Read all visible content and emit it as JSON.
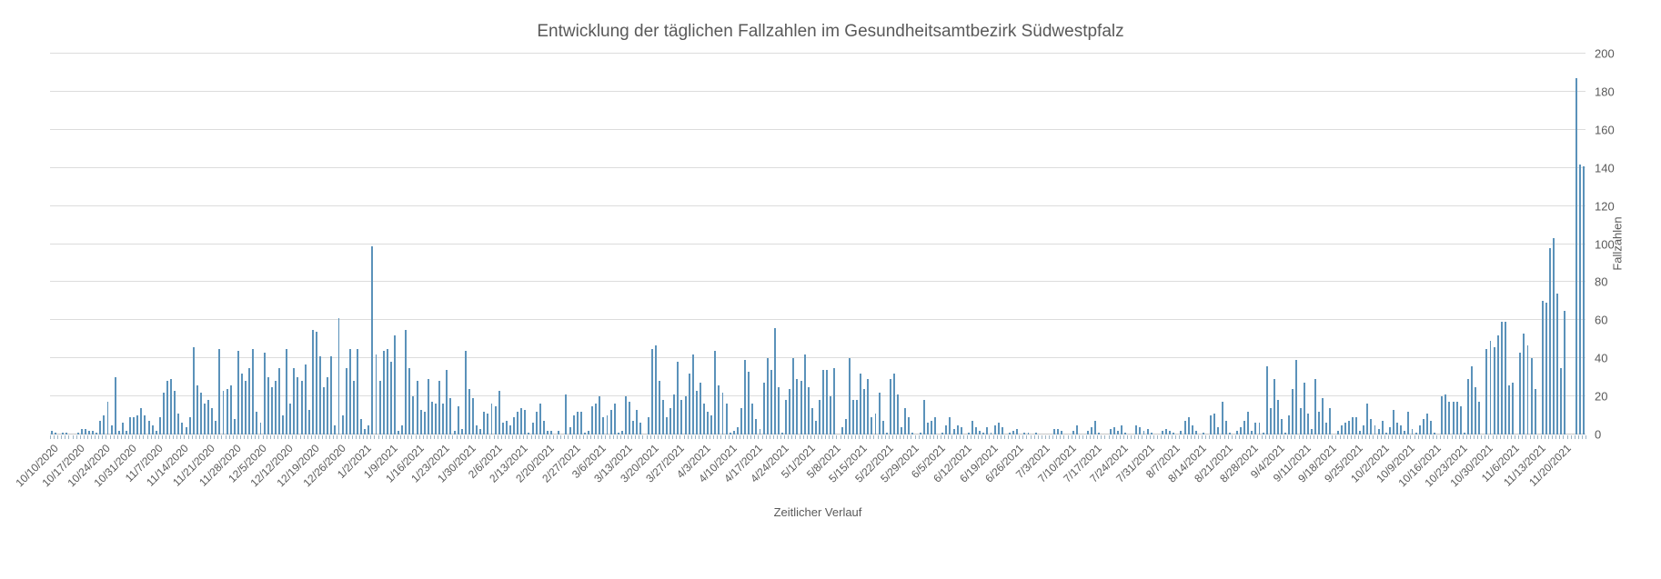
{
  "title": "Entwicklung der täglichen Fallzahlen im Gesundheitsamtbezirk Südwestpfalz",
  "x_axis": {
    "title": "Zeitlicher Verlauf"
  },
  "y_axis": {
    "title": "Fallzahlen"
  },
  "colors": {
    "bar": "#5b92ba",
    "gridline": "#dcdcdc",
    "axis_line": "#c6c6c6",
    "text": "#595959",
    "day_tick": "#9db4c4"
  },
  "chart_data": {
    "type": "bar",
    "title": "Entwicklung der täglichen Fallzahlen im Gesundheitsamtbezirk Südwestpfalz",
    "xlabel": "Zeitlicher Verlauf",
    "ylabel": "Fallzahlen",
    "ylim": [
      0,
      200
    ],
    "ystep": 20,
    "grid": true,
    "legend": "none",
    "y_axis_side": "right",
    "x_start_date": "10/10/2020",
    "x_end_date": "11/25/2021",
    "frequency": "daily",
    "x_tick_interval_days": 7,
    "x_tick_labels": [
      "10/10/2020",
      "10/17/2020",
      "10/24/2020",
      "10/31/2020",
      "11/7/2020",
      "11/14/2020",
      "11/21/2020",
      "11/28/2020",
      "12/5/2020",
      "12/12/2020",
      "12/19/2020",
      "12/26/2020",
      "1/2/2021",
      "1/9/2021",
      "1/16/2021",
      "1/23/2021",
      "1/30/2021",
      "2/6/2021",
      "2/13/2021",
      "2/20/2021",
      "2/27/2021",
      "3/6/2021",
      "3/13/2021",
      "3/20/2021",
      "3/27/2021",
      "4/3/2021",
      "4/10/2021",
      "4/17/2021",
      "4/24/2021",
      "5/1/2021",
      "5/8/2021",
      "5/15/2021",
      "5/22/2021",
      "5/29/2021",
      "6/5/2021",
      "6/12/2021",
      "6/19/2021",
      "6/26/2021",
      "7/3/2021",
      "7/10/2021",
      "7/17/2021",
      "7/24/2021",
      "7/31/2021",
      "8/7/2021",
      "8/14/2021",
      "8/21/2021",
      "8/28/2021",
      "9/4/2021",
      "9/11/2021",
      "9/18/2021",
      "9/25/2021",
      "10/2/2021",
      "10/9/2021",
      "10/16/2021",
      "10/23/2021",
      "10/30/2021",
      "11/6/2021",
      "11/13/2021",
      "11/20/2021"
    ],
    "y_tick_labels": [
      "0",
      "20",
      "40",
      "60",
      "80",
      "100",
      "120",
      "140",
      "160",
      "180",
      "200"
    ],
    "values": [
      2,
      1,
      0,
      1,
      1,
      0,
      0,
      1,
      3,
      3,
      2,
      2,
      1,
      7,
      10,
      17,
      5,
      30,
      2,
      6,
      2,
      9,
      9,
      10,
      14,
      10,
      7,
      5,
      2,
      9,
      22,
      28,
      29,
      23,
      11,
      6,
      4,
      9,
      46,
      26,
      22,
      16,
      18,
      14,
      7,
      45,
      23,
      24,
      26,
      8,
      44,
      32,
      28,
      35,
      45,
      12,
      6,
      43,
      30,
      25,
      28,
      35,
      10,
      45,
      16,
      35,
      30,
      28,
      37,
      13,
      55,
      54,
      41,
      25,
      30,
      41,
      5,
      61,
      10,
      35,
      45,
      28,
      45,
      8,
      3,
      5,
      99,
      42,
      28,
      44,
      45,
      38,
      52,
      2,
      5,
      55,
      35,
      20,
      28,
      13,
      12,
      29,
      17,
      16,
      28,
      16,
      34,
      19,
      2,
      15,
      3,
      44,
      24,
      19,
      5,
      3,
      12,
      11,
      16,
      15,
      23,
      6,
      7,
      5,
      9,
      12,
      14,
      13,
      1,
      6,
      12,
      16,
      7,
      2,
      2,
      0,
      2,
      0,
      21,
      4,
      10,
      12,
      12,
      1,
      2,
      15,
      16,
      20,
      9,
      10,
      13,
      16,
      1,
      2,
      20,
      17,
      7,
      13,
      6,
      0,
      9,
      45,
      47,
      28,
      18,
      9,
      14,
      21,
      38,
      18,
      20,
      32,
      42,
      23,
      27,
      16,
      12,
      10,
      44,
      26,
      22,
      16,
      1,
      2,
      4,
      14,
      39,
      33,
      16,
      8,
      3,
      27,
      40,
      34,
      56,
      25,
      1,
      18,
      24,
      40,
      29,
      28,
      42,
      25,
      14,
      7,
      18,
      34,
      34,
      20,
      35,
      0,
      4,
      8,
      40,
      18,
      18,
      32,
      24,
      29,
      9,
      11,
      22,
      7,
      1,
      29,
      32,
      21,
      4,
      14,
      9,
      1,
      0,
      1,
      18,
      6,
      7,
      9,
      0,
      1,
      5,
      9,
      3,
      5,
      4,
      0,
      1,
      7,
      4,
      2,
      1,
      4,
      1,
      5,
      6,
      4,
      0,
      1,
      2,
      3,
      0,
      1,
      1,
      0,
      1,
      0,
      0,
      0,
      0,
      3,
      3,
      2,
      0,
      0,
      2,
      5,
      0,
      0,
      2,
      4,
      7,
      1,
      0,
      0,
      3,
      4,
      2,
      5,
      1,
      0,
      0,
      5,
      4,
      2,
      3,
      1,
      0,
      0,
      2,
      3,
      2,
      1,
      0,
      2,
      7,
      9,
      5,
      2,
      0,
      1,
      0,
      10,
      11,
      4,
      17,
      7,
      1,
      0,
      2,
      4,
      7,
      12,
      2,
      6,
      6,
      1,
      36,
      14,
      29,
      18,
      8,
      1,
      10,
      24,
      39,
      14,
      27,
      11,
      3,
      29,
      12,
      19,
      6,
      14,
      0,
      2,
      5,
      6,
      7,
      9,
      9,
      2,
      5,
      16,
      8,
      5,
      3,
      7,
      1,
      4,
      13,
      6,
      5,
      2,
      12,
      3,
      1,
      5,
      8,
      11,
      7,
      1,
      0,
      20,
      21,
      17,
      17,
      17,
      15,
      1,
      29,
      36,
      25,
      17,
      0,
      45,
      49,
      46,
      52,
      59,
      59,
      26,
      27,
      0,
      43,
      53,
      47,
      40,
      24,
      0,
      70,
      69,
      98,
      103,
      74,
      35,
      65,
      0,
      0,
      187,
      142,
      141
    ]
  }
}
